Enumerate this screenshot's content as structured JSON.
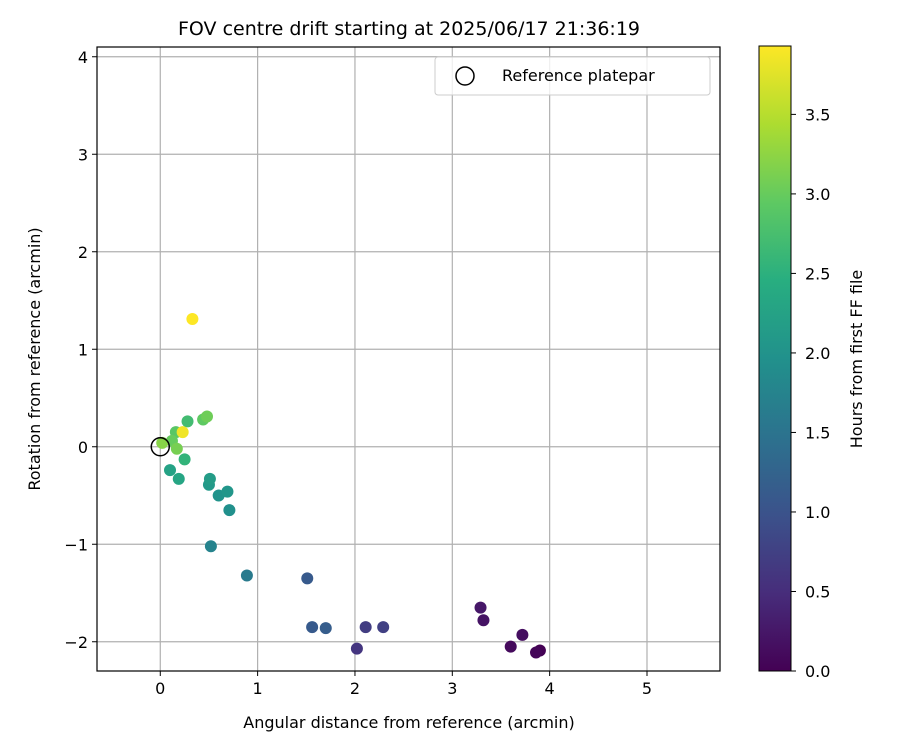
{
  "chart_data": {
    "type": "scatter",
    "title": "FOV centre drift starting at 2025/06/17 21:36:19",
    "xlabel": "Angular distance from reference (arcmin)",
    "ylabel": "Rotation from reference (arcmin)",
    "xlim": [
      -0.65,
      5.75
    ],
    "ylim": [
      -2.3,
      4.1
    ],
    "xticks": [
      0,
      1,
      2,
      3,
      4,
      5
    ],
    "xtick_labels": [
      "0",
      "1",
      "2",
      "3",
      "4",
      "5"
    ],
    "yticks": [
      -2,
      -1,
      0,
      1,
      2,
      3,
      4
    ],
    "ytick_labels": [
      "−2",
      "−1",
      "0",
      "1",
      "2",
      "3",
      "4"
    ],
    "grid": true,
    "legend": {
      "position": "top-right",
      "entries": [
        "Reference platepar"
      ]
    },
    "reference_point": {
      "name": "Reference platepar",
      "x": 0,
      "y": 0,
      "marker": "open-circle"
    },
    "colorbar": {
      "label": "Hours from first FF file",
      "colormap": "viridis",
      "min": 0.0,
      "max": 3.93,
      "ticks": [
        0.0,
        0.5,
        1.0,
        1.5,
        2.0,
        2.5,
        3.0,
        3.5
      ],
      "tick_labels": [
        "0.0",
        "0.5",
        "1.0",
        "1.5",
        "2.0",
        "2.5",
        "3.0",
        "3.5"
      ]
    },
    "points": [
      {
        "x": 3.9,
        "y": -2.09,
        "hours": 0.0
      },
      {
        "x": 3.86,
        "y": -2.11,
        "hours": 0.05
      },
      {
        "x": 3.6,
        "y": -2.05,
        "hours": 0.1
      },
      {
        "x": 3.72,
        "y": -1.93,
        "hours": 0.15
      },
      {
        "x": 3.32,
        "y": -1.78,
        "hours": 0.2
      },
      {
        "x": 3.29,
        "y": -1.65,
        "hours": 0.25
      },
      {
        "x": 2.02,
        "y": -2.07,
        "hours": 0.6
      },
      {
        "x": 2.11,
        "y": -1.85,
        "hours": 0.7
      },
      {
        "x": 2.29,
        "y": -1.85,
        "hours": 0.75
      },
      {
        "x": 1.56,
        "y": -1.85,
        "hours": 1.1
      },
      {
        "x": 1.7,
        "y": -1.86,
        "hours": 1.15
      },
      {
        "x": 1.51,
        "y": -1.35,
        "hours": 1.1
      },
      {
        "x": 0.89,
        "y": -1.32,
        "hours": 1.6
      },
      {
        "x": 0.52,
        "y": -1.02,
        "hours": 1.75
      },
      {
        "x": 0.71,
        "y": -0.65,
        "hours": 1.95
      },
      {
        "x": 0.6,
        "y": -0.5,
        "hours": 2.0
      },
      {
        "x": 0.69,
        "y": -0.46,
        "hours": 2.05
      },
      {
        "x": 0.5,
        "y": -0.39,
        "hours": 2.1
      },
      {
        "x": 0.51,
        "y": -0.33,
        "hours": 2.15
      },
      {
        "x": 0.1,
        "y": -0.24,
        "hours": 2.25
      },
      {
        "x": 0.19,
        "y": -0.33,
        "hours": 2.3
      },
      {
        "x": 0.25,
        "y": -0.13,
        "hours": 2.55
      },
      {
        "x": 0.28,
        "y": 0.26,
        "hours": 2.7
      },
      {
        "x": 0.44,
        "y": 0.28,
        "hours": 2.95
      },
      {
        "x": 0.48,
        "y": 0.31,
        "hours": 3.05
      },
      {
        "x": 0.16,
        "y": 0.15,
        "hours": 2.9
      },
      {
        "x": 0.12,
        "y": 0.06,
        "hours": 3.0
      },
      {
        "x": 0.17,
        "y": -0.02,
        "hours": 3.1
      },
      {
        "x": 0.02,
        "y": 0.04,
        "hours": 3.2
      },
      {
        "x": 0.23,
        "y": 0.15,
        "hours": 3.85
      },
      {
        "x": 0.33,
        "y": 1.31,
        "hours": 3.93
      }
    ]
  }
}
